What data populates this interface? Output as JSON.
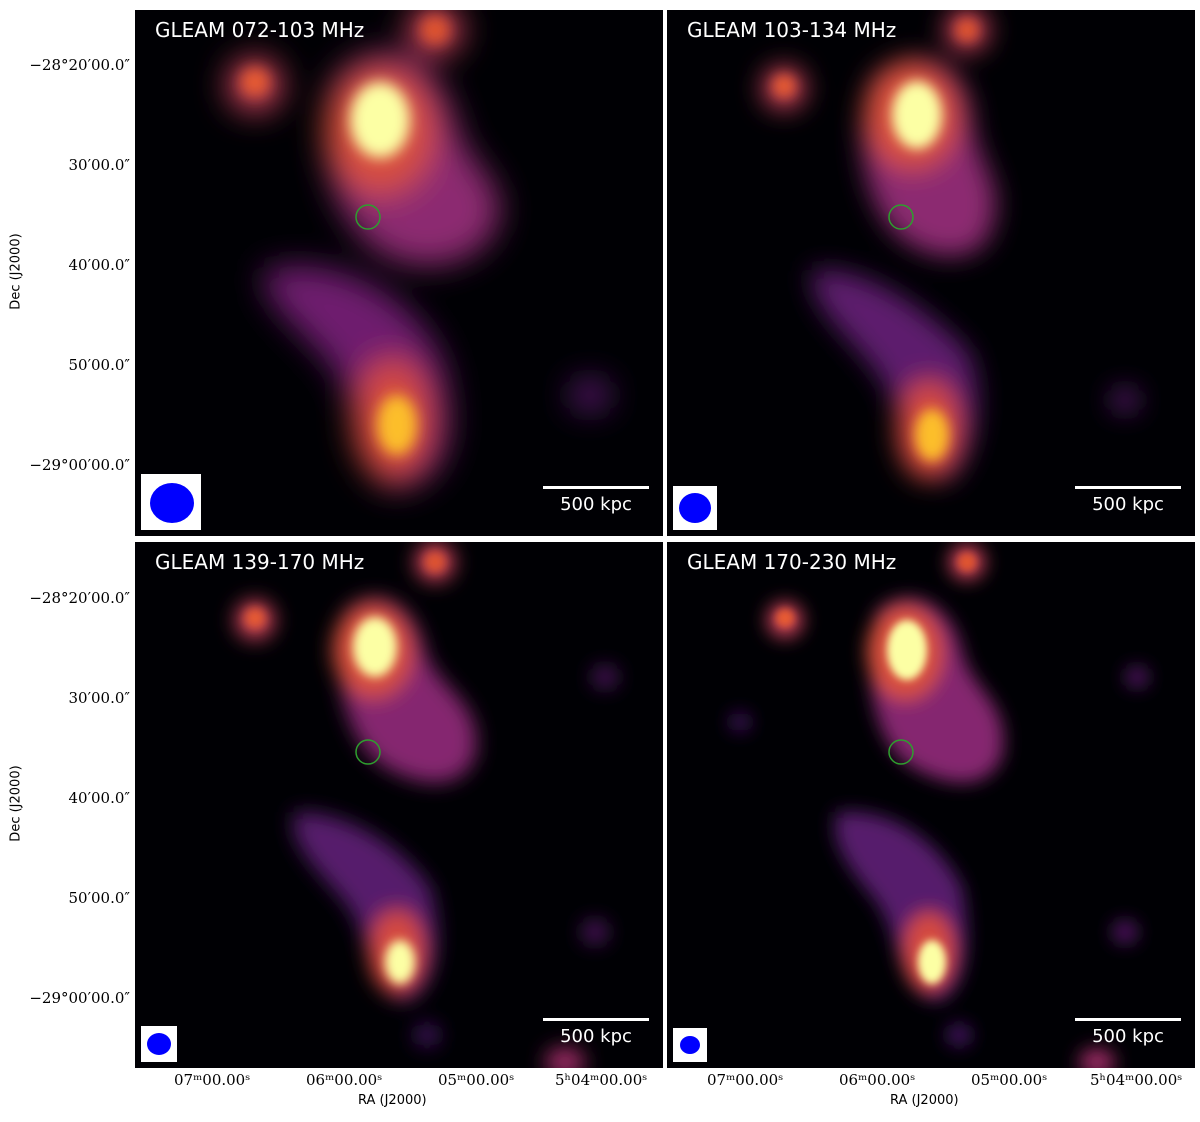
{
  "panels": [
    {
      "title": "GLEAM 072-103 MHz",
      "beam_size": "large"
    },
    {
      "title": "GLEAM 103-134 MHz",
      "beam_size": "medium"
    },
    {
      "title": "GLEAM 139-170 MHz",
      "beam_size": "small"
    },
    {
      "title": "GLEAM 170-230 MHz",
      "beam_size": "smallest"
    }
  ],
  "scalebar_label": "500 kpc",
  "axes": {
    "xlabel": "RA (J2000)",
    "ylabel": "Dec (J2000)",
    "dec_ticks": [
      "−28°20′00.0″",
      "30′00.0″",
      "40′00.0″",
      "50′00.0″",
      "−29°00′00.0″"
    ],
    "ra_ticks": [
      "07ᵐ00.00ˢ",
      "06ᵐ00.00ˢ",
      "05ᵐ00.00ˢ",
      "5ʰ04ᵐ00.00ˢ"
    ]
  },
  "colors": {
    "background": "#000004",
    "colormap": "inferno",
    "beam": "#0000ff",
    "host_marker": "#2e9e2e"
  },
  "icons": [
    "beam-ellipse-icon",
    "host-marker-circle-icon"
  ]
}
